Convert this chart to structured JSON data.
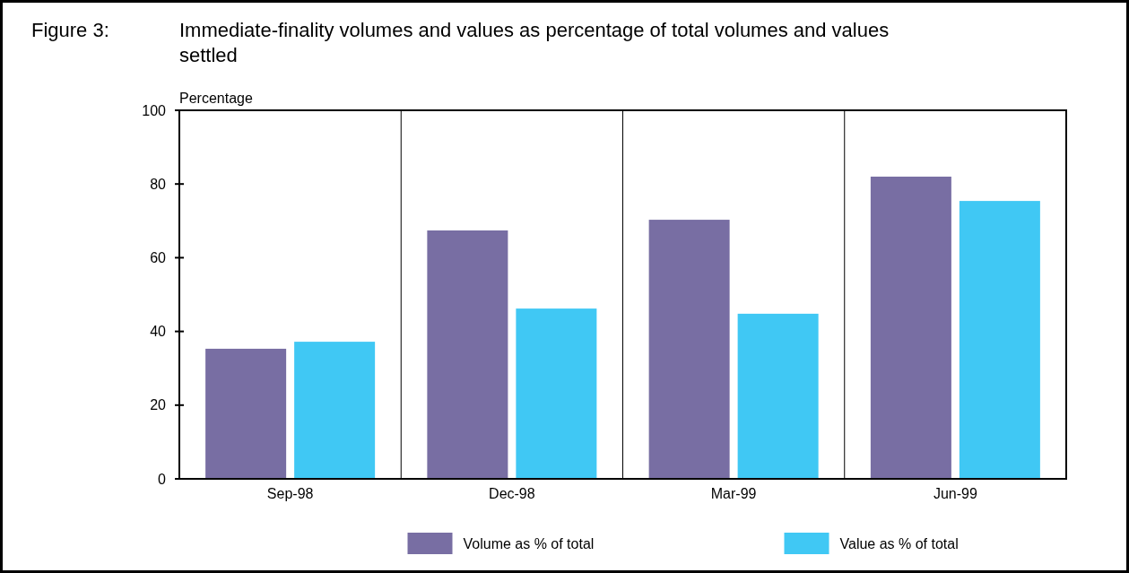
{
  "chart_data": {
    "type": "bar",
    "title": "Immediate-finality volumes and values as percentage of total volumes and values settled",
    "annotations": [
      "Figure 3:"
    ],
    "ylabel": "Percentage",
    "categories": [
      "Sep-98",
      "Dec-98",
      "Mar-99",
      "Jun-99"
    ],
    "series": [
      {
        "name": "Volume as % of total",
        "color": "#786ea3",
        "values": [
          35.3,
          67.4,
          70.3,
          82
        ]
      },
      {
        "name": "Value as % of total",
        "color": "#40c8f4",
        "values": [
          37.2,
          46.2,
          44.8,
          75.4
        ]
      }
    ],
    "ylim": [
      0,
      100
    ],
    "yticks": [
      0,
      20,
      40,
      60,
      80,
      100
    ],
    "grid": false,
    "legend": "bottom"
  }
}
